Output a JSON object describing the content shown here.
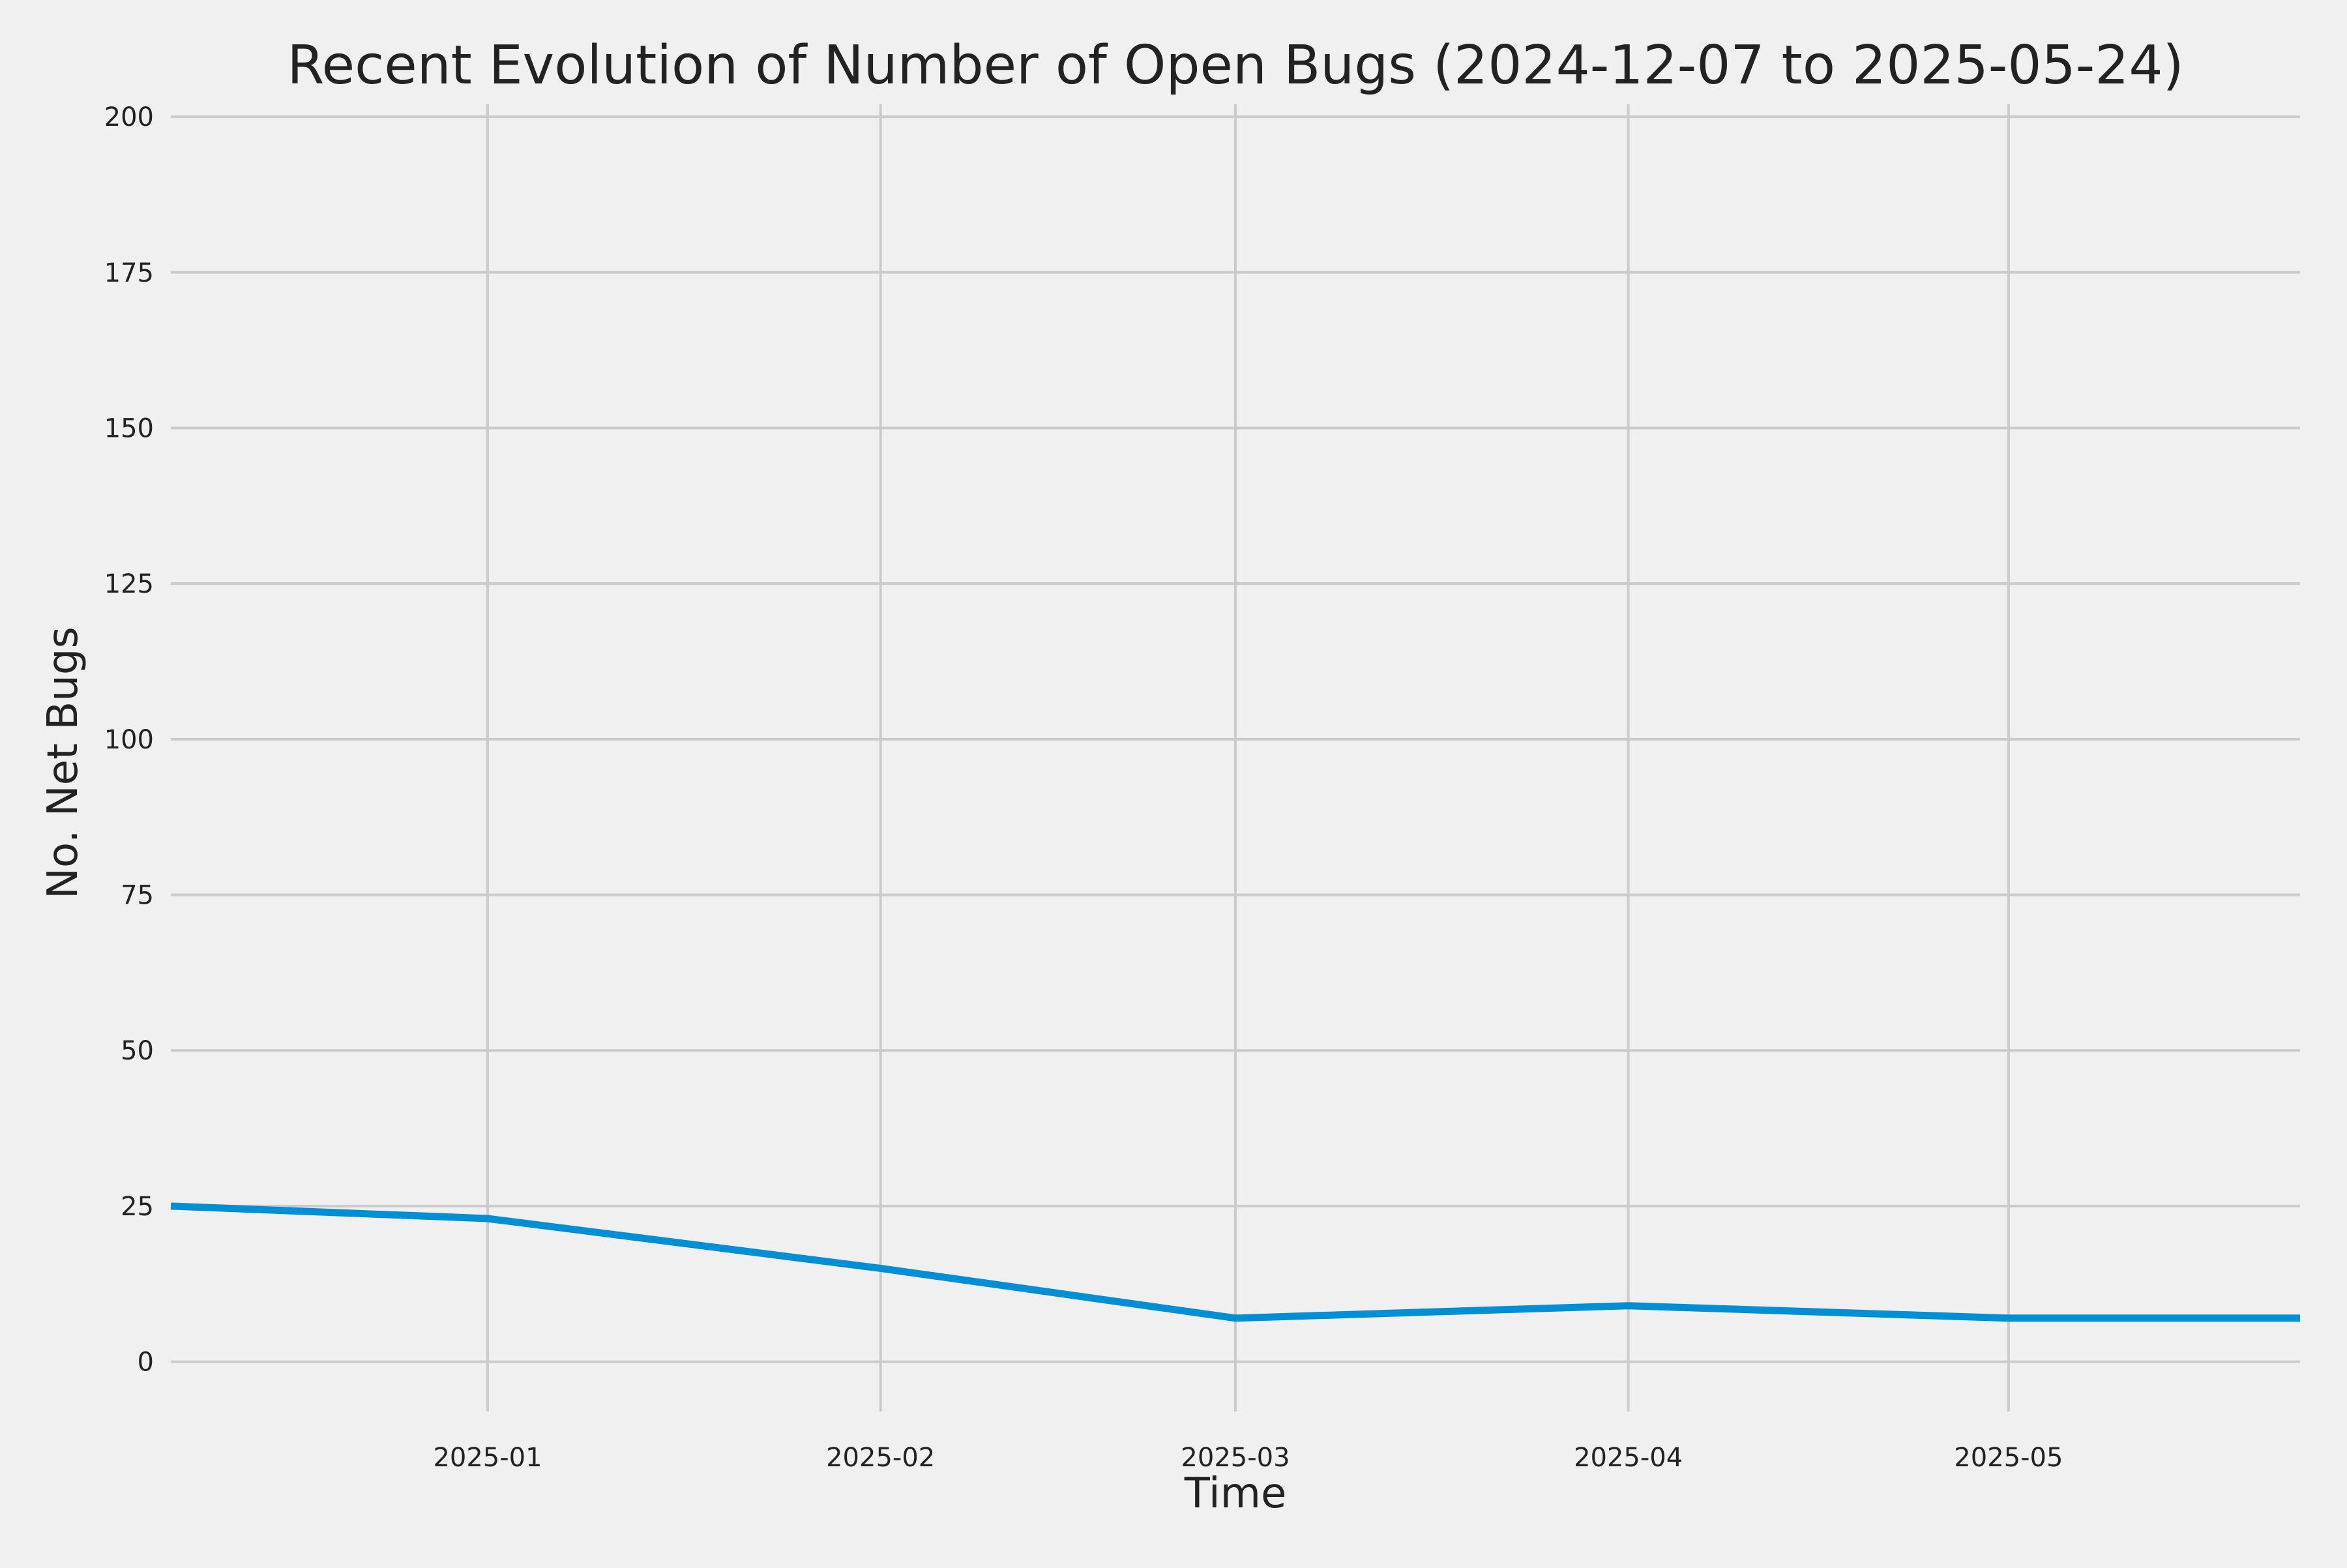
{
  "chart_data": {
    "type": "line",
    "title": "Recent Evolution of Number of Open Bugs (2024-12-07 to 2025-05-24)",
    "xlabel": "Time",
    "ylabel": "No. Net Bugs",
    "xlim": [
      "2024-12-07",
      "2025-05-24"
    ],
    "ylim": [
      -8,
      202
    ],
    "grid": true,
    "x_ticks": [
      {
        "date": "2025-01-01",
        "label": "2025-01"
      },
      {
        "date": "2025-02-01",
        "label": "2025-02"
      },
      {
        "date": "2025-03-01",
        "label": "2025-03"
      },
      {
        "date": "2025-04-01",
        "label": "2025-04"
      },
      {
        "date": "2025-05-01",
        "label": "2025-05"
      }
    ],
    "y_ticks": [
      {
        "value": 0,
        "label": "0"
      },
      {
        "value": 25,
        "label": "25"
      },
      {
        "value": 50,
        "label": "50"
      },
      {
        "value": 75,
        "label": "75"
      },
      {
        "value": 100,
        "label": "100"
      },
      {
        "value": 125,
        "label": "125"
      },
      {
        "value": 150,
        "label": "150"
      },
      {
        "value": 175,
        "label": "175"
      },
      {
        "value": 200,
        "label": "200"
      }
    ],
    "series": [
      {
        "name": "Open Bugs",
        "color": "#008fd5",
        "points": [
          {
            "x": "2024-12-07",
            "y": 25
          },
          {
            "x": "2025-01-01",
            "y": 23
          },
          {
            "x": "2025-02-01",
            "y": 15
          },
          {
            "x": "2025-03-01",
            "y": 7
          },
          {
            "x": "2025-04-01",
            "y": 9
          },
          {
            "x": "2025-05-01",
            "y": 7
          },
          {
            "x": "2025-05-24",
            "y": 7
          }
        ]
      }
    ]
  },
  "colors": {
    "background": "#f0f0f0",
    "grid": "#cbcbcb",
    "text": "#222222",
    "series": "#008fd5"
  }
}
